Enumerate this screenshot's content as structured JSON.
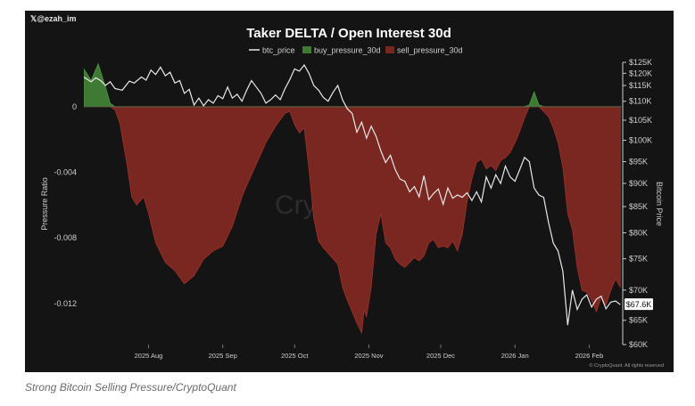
{
  "handle": "𝕏@ezah_im",
  "caption": "Strong Bitcoin Selling Pressure/CryptoQuant",
  "watermark": "CryptoQuant",
  "footer_credit": "© CryptoQuant. All rights reserved",
  "colors": {
    "panel_bg": "#141414",
    "btc_line": "#e8e8e8",
    "buy_fill": "#3f7a34",
    "sell_fill": "#7a2621",
    "sell_line": "#b7352c",
    "text": "#cfcfcf"
  },
  "chart_data": {
    "type": "area",
    "title": "Taker DELTA / Open Interest 30d",
    "legend": [
      "btc_price",
      "buy_pressure_30d",
      "sell_pressure_30d"
    ],
    "ylabel_left": "Pressure Ratio",
    "ylabel_right": "Bitcoin Price",
    "left_ticks": [
      "0",
      "-0.004",
      "-0.008",
      "-0.012"
    ],
    "left_tick_values": [
      0,
      -0.004,
      -0.008,
      -0.012
    ],
    "left_ylim": [
      -0.0145,
      0.0027
    ],
    "right_ticks": [
      "$125K",
      "$120K",
      "$115K",
      "$110K",
      "$105K",
      "$100K",
      "$95K",
      "$90K",
      "$85K",
      "$80K",
      "$75K",
      "$70K",
      "$65K",
      "$60K"
    ],
    "right_tick_values": [
      125000,
      120000,
      115000,
      110000,
      105000,
      100000,
      95000,
      90000,
      85000,
      80000,
      75000,
      70000,
      65000,
      60000
    ],
    "right_scale_anchors": [
      [
        60000,
        0
      ],
      [
        65000,
        0.086
      ],
      [
        70000,
        0.193
      ],
      [
        75000,
        0.304
      ],
      [
        80000,
        0.396
      ],
      [
        85000,
        0.489
      ],
      [
        90000,
        0.571
      ],
      [
        95000,
        0.648
      ],
      [
        100000,
        0.724
      ],
      [
        105000,
        0.795
      ],
      [
        110000,
        0.862
      ],
      [
        115000,
        0.918
      ],
      [
        120000,
        0.961
      ],
      [
        125000,
        1.0
      ]
    ],
    "x_ticks": [
      "2025 Aug",
      "2025 Sep",
      "2025 Oct",
      "2025 Nov",
      "2025 Dec",
      "2026 Jan",
      "2026 Feb"
    ],
    "x_tick_days": [
      27,
      58,
      88,
      119,
      149,
      180,
      211
    ],
    "x_range_days": [
      0,
      225
    ],
    "current_price_label": "$67.6K",
    "current_price": 67600,
    "pressure_series": {
      "days": [
        0,
        3,
        6,
        9,
        11,
        13,
        15,
        18,
        20,
        22,
        25,
        27,
        30,
        34,
        38,
        42,
        46,
        48,
        50,
        54,
        58,
        62,
        66,
        68,
        72,
        76,
        80,
        84,
        86,
        88,
        90,
        92,
        94,
        96,
        98,
        100,
        103,
        106,
        108,
        110,
        112,
        114,
        116,
        117,
        118,
        120,
        122,
        124,
        126,
        128,
        130,
        132,
        134,
        136,
        138,
        140,
        142,
        144,
        146,
        148,
        150,
        152,
        154,
        156,
        158,
        160,
        162,
        164,
        166,
        168,
        170,
        172,
        174,
        176,
        178,
        180,
        182,
        184,
        186,
        188,
        190,
        192,
        194,
        196,
        198,
        200,
        202,
        204,
        206,
        208,
        210,
        212,
        214,
        216,
        218,
        220,
        222,
        224
      ],
      "values": [
        0.0023,
        0.0016,
        0.0026,
        0.0012,
        0.0002,
        -0.0002,
        -0.001,
        -0.0035,
        -0.0055,
        -0.006,
        -0.0055,
        -0.0065,
        -0.0083,
        -0.0095,
        -0.01,
        -0.0108,
        -0.0103,
        -0.0098,
        -0.0093,
        -0.0088,
        -0.0085,
        -0.0073,
        -0.0055,
        -0.0048,
        -0.0035,
        -0.0022,
        -0.0012,
        -0.0004,
        -0.0003,
        -0.0011,
        -0.0016,
        -0.0013,
        -0.0038,
        -0.0068,
        -0.0082,
        -0.0086,
        -0.0091,
        -0.0096,
        -0.011,
        -0.0118,
        -0.0125,
        -0.0132,
        -0.0138,
        -0.0124,
        -0.0128,
        -0.011,
        -0.0078,
        -0.0065,
        -0.0083,
        -0.0086,
        -0.0093,
        -0.0096,
        -0.0098,
        -0.0095,
        -0.0092,
        -0.0094,
        -0.0091,
        -0.0083,
        -0.0081,
        -0.0086,
        -0.0085,
        -0.0086,
        -0.0082,
        -0.0088,
        -0.0078,
        -0.0058,
        -0.0044,
        -0.0034,
        -0.0032,
        -0.0038,
        -0.0036,
        -0.0039,
        -0.0033,
        -0.0031,
        -0.0028,
        -0.0022,
        -0.0015,
        -0.0007,
        0.0001,
        0.0009,
        0.0001,
        -0.0003,
        -0.0006,
        -0.0013,
        -0.0022,
        -0.0037,
        -0.0065,
        -0.0075,
        -0.0098,
        -0.0112,
        -0.0113,
        -0.0118,
        -0.0125,
        -0.0116,
        -0.0121,
        -0.0112,
        -0.0105,
        -0.011
      ]
    },
    "btc_price_series": {
      "days": [
        0,
        3,
        5,
        7,
        9,
        11,
        13,
        16,
        19,
        21,
        24,
        26,
        28,
        30,
        32,
        34,
        36,
        38,
        40,
        42,
        44,
        46,
        48,
        50,
        52,
        54,
        56,
        58,
        60,
        62,
        64,
        66,
        68,
        70,
        72,
        74,
        76,
        78,
        80,
        82,
        84,
        86,
        88,
        90,
        92,
        94,
        96,
        98,
        100,
        102,
        104,
        106,
        108,
        110,
        112,
        114,
        116,
        118,
        120,
        122,
        124,
        126,
        128,
        130,
        132,
        134,
        136,
        138,
        140,
        142,
        144,
        146,
        148,
        150,
        152,
        154,
        156,
        158,
        160,
        162,
        164,
        166,
        168,
        170,
        172,
        174,
        176,
        178,
        180,
        182,
        184,
        186,
        188,
        190,
        192,
        194,
        196,
        198,
        200,
        202,
        204,
        206,
        208,
        210,
        212,
        214,
        216,
        218,
        220,
        222,
        224
      ],
      "values": [
        118500,
        116500,
        118200,
        117000,
        115000,
        116500,
        114000,
        113500,
        116800,
        116000,
        118500,
        117200,
        121500,
        119500,
        122800,
        119000,
        120500,
        116000,
        117000,
        112500,
        113800,
        109000,
        111000,
        108800,
        110500,
        109500,
        111800,
        110800,
        114500,
        111000,
        112200,
        110000,
        113500,
        117000,
        114500,
        112500,
        109500,
        110500,
        112000,
        110500,
        114000,
        117500,
        122000,
        121000,
        123800,
        120000,
        115000,
        113500,
        111200,
        110000,
        112800,
        115000,
        110500,
        108000,
        106800,
        102000,
        104500,
        100500,
        103500,
        101000,
        97500,
        94800,
        96500,
        93200,
        91000,
        90500,
        88200,
        89300,
        87100,
        91800,
        86500,
        87800,
        88800,
        85500,
        89000,
        86800,
        87500,
        87000,
        88000,
        86300,
        88200,
        86000,
        91500,
        89000,
        92000,
        90000,
        94000,
        91500,
        90500,
        93200,
        96000,
        95000,
        89000,
        87500,
        87000,
        82000,
        78000,
        76500,
        73000,
        64000,
        70000,
        66800,
        68500,
        69200,
        67200,
        68500,
        69000,
        66900,
        68000,
        68200,
        67600
      ]
    }
  }
}
